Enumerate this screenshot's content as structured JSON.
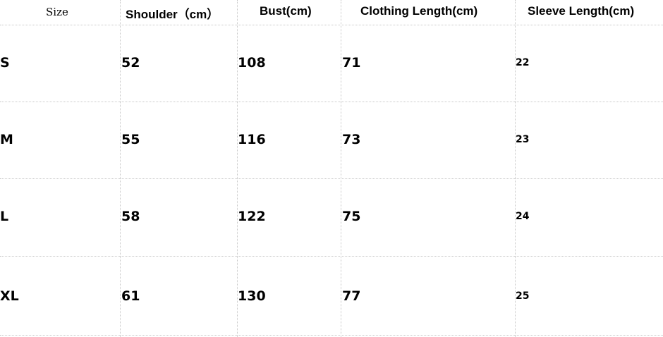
{
  "table": {
    "headers": [
      "Size",
      "Shoulder（cm）",
      "Bust(cm)",
      "Clothing Length(cm)",
      "Sleeve Length(cm)"
    ],
    "rows": [
      [
        "S",
        "52",
        "108",
        "71",
        "22"
      ],
      [
        "M",
        "55",
        "116",
        "73",
        "23"
      ],
      [
        "L",
        "58",
        "122",
        "75",
        "24"
      ],
      [
        "XL",
        "61",
        "130",
        "77",
        "25"
      ]
    ]
  }
}
